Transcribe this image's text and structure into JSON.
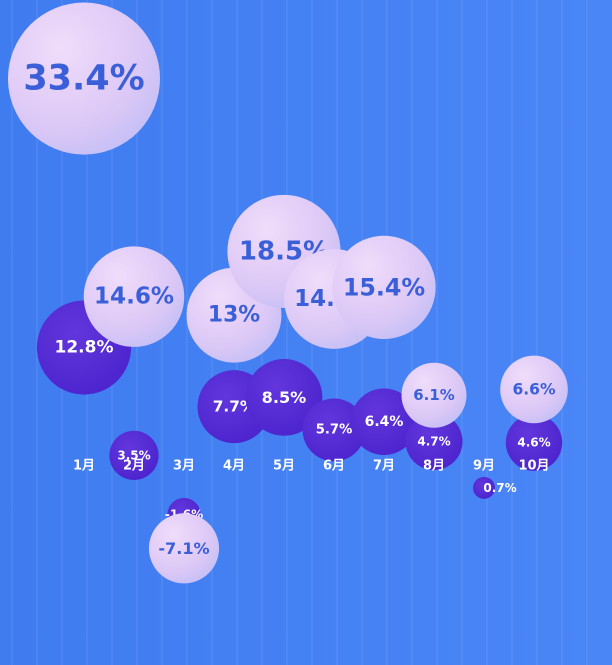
{
  "chart_data": {
    "type": "scatter",
    "categories": [
      "1月",
      "2月",
      "3月",
      "4月",
      "5月",
      "6月",
      "7月",
      "8月",
      "9月",
      "10月"
    ],
    "grid": "vertical",
    "colors": {
      "series_a": "#e2ccf5",
      "series_a_text": "#3b5fd9",
      "series_b": "#5a2fd8",
      "series_b_text": "#ffffff",
      "month_text": "#ffffff"
    },
    "series": [
      {
        "values": [
          33.4,
          14.6,
          -7.1,
          13,
          18.5,
          14.4,
          15.4,
          6.1,
          null,
          6.6
        ],
        "labels": [
          "33.4%",
          "14.6%",
          "-7.1%",
          "13%",
          "18.5%",
          "14.4%",
          "15.4%",
          "6.1%",
          null,
          "6.6%"
        ]
      },
      {
        "values": [
          12.8,
          3.5,
          -1.6,
          7.7,
          8.5,
          5.7,
          6.4,
          4.7,
          0.7,
          4.6
        ],
        "labels": [
          "12.8%",
          "3.5%",
          "-1.6%",
          "7.7%",
          "8.5%",
          "5.7%",
          "6.4%",
          "4.7%",
          "0.7%",
          "4.6%"
        ]
      }
    ]
  }
}
